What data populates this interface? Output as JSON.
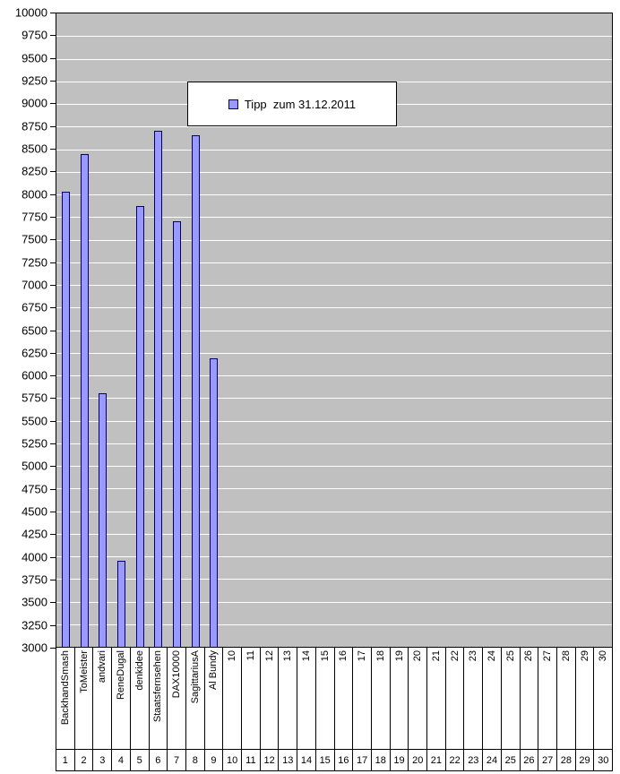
{
  "chart_data": {
    "type": "bar",
    "title": "",
    "legend": {
      "label": "Tipp  zum 31.12.2011",
      "position": "top-inside"
    },
    "ylim": [
      3000,
      10000
    ],
    "ytick_step": 250,
    "grid": true,
    "categories": [
      "BackhandSmash",
      "ToMeister",
      "andvari",
      "ReneDugal",
      "denkidee",
      "Staatsfernsehen",
      "DAX10000",
      "SagittariusA",
      "Al Bundy",
      "10",
      "11",
      "12",
      "13",
      "14",
      "15",
      "16",
      "17",
      "18",
      "19",
      "20",
      "21",
      "22",
      "23",
      "24",
      "25",
      "26",
      "27",
      "28",
      "29",
      "30"
    ],
    "ranks": [
      "1",
      "2",
      "3",
      "4",
      "5",
      "6",
      "7",
      "8",
      "9",
      "10",
      "11",
      "12",
      "13",
      "14",
      "15",
      "16",
      "17",
      "18",
      "19",
      "20",
      "21",
      "22",
      "23",
      "24",
      "25",
      "26",
      "27",
      "28",
      "29",
      "30"
    ],
    "values": [
      8025,
      8450,
      5800,
      3950,
      7875,
      8700,
      7700,
      8650,
      6190,
      null,
      null,
      null,
      null,
      null,
      null,
      null,
      null,
      null,
      null,
      null,
      null,
      null,
      null,
      null,
      null,
      null,
      null,
      null,
      null,
      null
    ],
    "colors": {
      "bar_fill": "#9999FF",
      "bar_border": "#000066",
      "plot_bg": "#C0C0C0",
      "gridline": "#FFFFFF"
    }
  }
}
